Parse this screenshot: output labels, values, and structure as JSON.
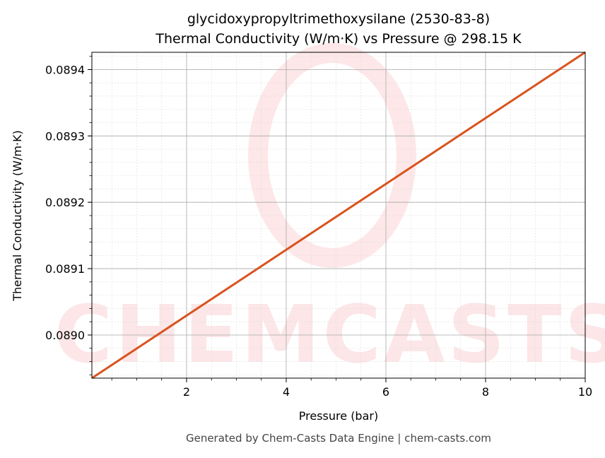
{
  "chart_data": {
    "type": "line",
    "title": "glycidoxypropyltrimethoxysilane (2530-83-8)",
    "subtitle": "Thermal Conductivity (W/m·K) vs Pressure @ 298.15 K",
    "xlabel": "Pressure (bar)",
    "ylabel": "Thermal Conductivity (W/m·K)",
    "xlim": [
      0.1,
      10
    ],
    "ylim": [
      0.088935,
      0.089426
    ],
    "xticks": [
      2,
      4,
      6,
      8,
      10
    ],
    "xtick_labels": [
      "2",
      "4",
      "6",
      "8",
      "10"
    ],
    "yticks": [
      0.089,
      0.0891,
      0.0892,
      0.0893,
      0.0894
    ],
    "ytick_labels": [
      "0.0890",
      "0.0891",
      "0.0892",
      "0.0893",
      "0.0894"
    ],
    "x_minor_step": 0.5,
    "y_minor_step": 2e-05,
    "grid": true,
    "series": [
      {
        "x": [
          0.1,
          10
        ],
        "y": [
          0.088935,
          0.089426
        ],
        "color": "#d9531e"
      }
    ],
    "watermark": "CHEMCASTS",
    "footer": "Generated by Chem-Casts Data Engine | chem-casts.com"
  }
}
